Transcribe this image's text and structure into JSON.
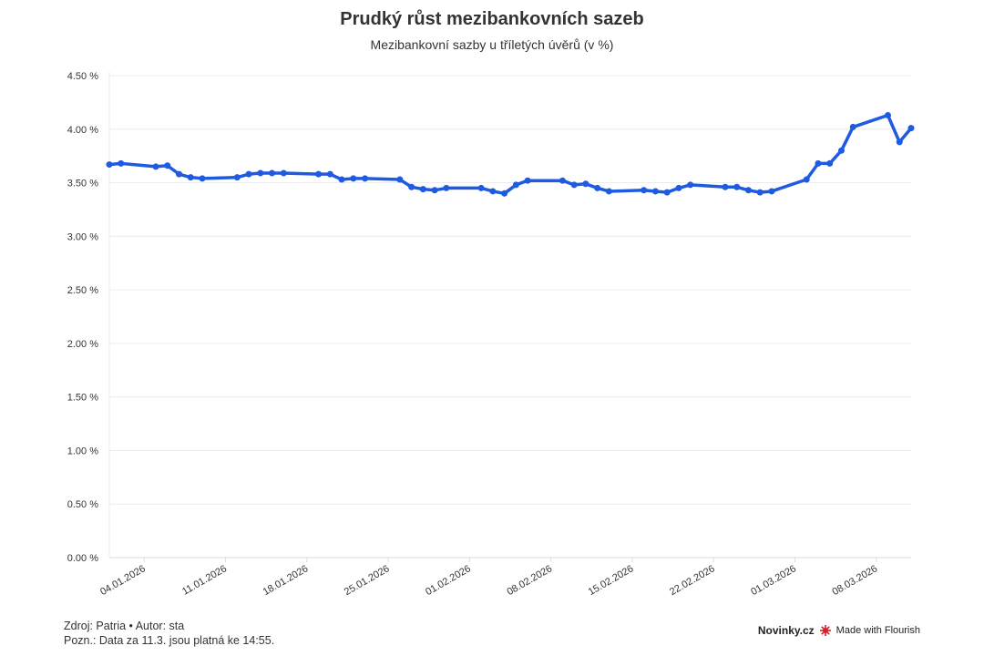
{
  "chart_data": {
    "type": "line",
    "title": "Prudký růst mezibankovních sazeb",
    "subtitle": "Mezibankovní sazby u tříletých úvěrů (v %)",
    "xlabel": "",
    "ylabel": "",
    "ylim": [
      0,
      4.5
    ],
    "xlim": [
      "01.01.2026",
      "11.03.2026"
    ],
    "y_ticks": [
      "0.00 %",
      "0.50 %",
      "1.00 %",
      "1.50 %",
      "2.00 %",
      "2.50 %",
      "3.00 %",
      "3.50 %",
      "4.00 %",
      "4.50 %"
    ],
    "x_ticks": [
      "04.01.2026",
      "11.01.2026",
      "18.01.2026",
      "25.01.2026",
      "01.02.2026",
      "08.02.2026",
      "15.02.2026",
      "22.02.2026",
      "01.03.2026",
      "08.03.2026"
    ],
    "grid": true,
    "line_color": "#1f5be0",
    "x": [
      "01.01.2026",
      "02.01.2026",
      "05.01.2026",
      "06.01.2026",
      "07.01.2026",
      "08.01.2026",
      "09.01.2026",
      "12.01.2026",
      "13.01.2026",
      "14.01.2026",
      "15.01.2026",
      "16.01.2026",
      "19.01.2026",
      "20.01.2026",
      "21.01.2026",
      "22.01.2026",
      "23.01.2026",
      "26.01.2026",
      "27.01.2026",
      "28.01.2026",
      "29.01.2026",
      "30.01.2026",
      "02.02.2026",
      "03.02.2026",
      "04.02.2026",
      "05.02.2026",
      "06.02.2026",
      "09.02.2026",
      "10.02.2026",
      "11.02.2026",
      "12.02.2026",
      "13.02.2026",
      "16.02.2026",
      "17.02.2026",
      "18.02.2026",
      "19.02.2026",
      "20.02.2026",
      "23.02.2026",
      "24.02.2026",
      "25.02.2026",
      "26.02.2026",
      "27.02.2026",
      "02.03.2026",
      "03.03.2026",
      "04.03.2026",
      "05.03.2026",
      "06.03.2026",
      "09.03.2026",
      "10.03.2026",
      "11.03.2026"
    ],
    "values": [
      3.67,
      3.68,
      3.65,
      3.66,
      3.58,
      3.55,
      3.54,
      3.55,
      3.58,
      3.59,
      3.59,
      3.59,
      3.58,
      3.58,
      3.53,
      3.54,
      3.54,
      3.53,
      3.46,
      3.44,
      3.43,
      3.45,
      3.45,
      3.42,
      3.4,
      3.48,
      3.52,
      3.52,
      3.48,
      3.49,
      3.45,
      3.42,
      3.43,
      3.42,
      3.41,
      3.45,
      3.48,
      3.46,
      3.46,
      3.43,
      3.41,
      3.42,
      3.53,
      3.68,
      3.68,
      3.8,
      4.02,
      4.13,
      3.88,
      4.01
    ]
  },
  "footer": {
    "source": "Zdroj: Patria • Autor: sta",
    "note": "Pozn.: Data za 11.3. jsou platná ke 14:55.",
    "brand": "Novinky.cz",
    "flourish": "Made with Flourish"
  }
}
